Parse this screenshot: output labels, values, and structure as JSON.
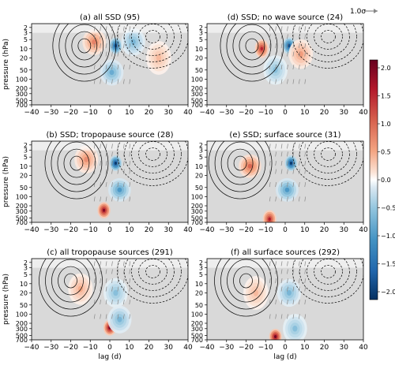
{
  "figure": {
    "ylabel": "pressure (hPa)",
    "xlabel": "lag (d)",
    "reference_vector_label": "1.0σ",
    "colorbar": {
      "ticks": [
        "2.0",
        "1.5",
        "1.0",
        "0.5",
        "0.0",
        "−0.5",
        "−1.0",
        "−1.5",
        "−2.0"
      ],
      "range": [
        -2.0,
        2.0
      ]
    }
  },
  "chart_data": [
    {
      "type": "heatmap",
      "title": "(a) all SSD (95)",
      "x_ticks": [
        -40,
        -30,
        -20,
        -10,
        0,
        10,
        20,
        30,
        40
      ],
      "y_ticks": [
        2,
        3,
        5,
        10,
        20,
        50,
        100,
        200,
        300,
        500,
        700
      ],
      "xlim": [
        -40,
        40
      ],
      "ylim_hPa": [
        700,
        1.5
      ],
      "y_scale": "log",
      "features": [
        {
          "kind": "positive",
          "lag": -8,
          "p": 6,
          "amp": 0.8
        },
        {
          "kind": "negative",
          "lag": 3,
          "p": 8,
          "amp": -1.8
        },
        {
          "kind": "negative",
          "lag": 1,
          "p": 60,
          "amp": -0.8
        },
        {
          "kind": "negative",
          "lag": 12,
          "p": 6,
          "amp": -0.7
        },
        {
          "kind": "positive",
          "lag": 25,
          "p": 20,
          "amp": 0.4
        }
      ]
    },
    {
      "type": "heatmap",
      "title": "(b) SSD; tropopause source (28)",
      "x_ticks": [
        -40,
        -30,
        -20,
        -10,
        0,
        10,
        20,
        30,
        40
      ],
      "y_ticks": [
        2,
        3,
        5,
        10,
        20,
        50,
        100,
        200,
        300,
        500,
        700
      ],
      "xlim": [
        -40,
        40
      ],
      "ylim_hPa": [
        700,
        1.5
      ],
      "y_scale": "log",
      "features": [
        {
          "kind": "positive",
          "lag": -12,
          "p": 6,
          "amp": 0.7
        },
        {
          "kind": "negative",
          "lag": 3,
          "p": 8,
          "amp": -2.0
        },
        {
          "kind": "negative",
          "lag": 5,
          "p": 60,
          "amp": -1.0
        },
        {
          "kind": "positive",
          "lag": -3,
          "p": 280,
          "amp": 1.9
        }
      ]
    },
    {
      "type": "heatmap",
      "title": "(c) all tropopause sources (291)",
      "x_ticks": [
        -40,
        -30,
        -20,
        -10,
        0,
        10,
        20,
        30,
        40
      ],
      "y_ticks": [
        2,
        3,
        5,
        10,
        20,
        50,
        100,
        200,
        300,
        500,
        700
      ],
      "xlim": [
        -40,
        40
      ],
      "ylim_hPa": [
        700,
        1.5
      ],
      "y_scale": "log",
      "features": [
        {
          "kind": "positive",
          "lag": -15,
          "p": 15,
          "amp": 0.5
        },
        {
          "kind": "negative",
          "lag": 3,
          "p": 20,
          "amp": -0.6
        },
        {
          "kind": "positive",
          "lag": 0,
          "p": 280,
          "amp": 2.0
        },
        {
          "kind": "negative",
          "lag": 5,
          "p": 150,
          "amp": -0.7
        }
      ]
    },
    {
      "type": "heatmap",
      "title": "(d) SSD; no wave source (24)",
      "x_ticks": [
        -40,
        -30,
        -20,
        -10,
        0,
        10,
        20,
        30,
        40
      ],
      "y_ticks": [
        2,
        3,
        5,
        10,
        20,
        50,
        100,
        200,
        300,
        500,
        700
      ],
      "xlim": [
        -40,
        40
      ],
      "ylim_hPa": [
        700,
        1.5
      ],
      "y_scale": "log",
      "features": [
        {
          "kind": "positive",
          "lag": -12,
          "p": 10,
          "amp": 1.5
        },
        {
          "kind": "negative",
          "lag": 2,
          "p": 8,
          "amp": -1.8
        },
        {
          "kind": "negative",
          "lag": -5,
          "p": 50,
          "amp": -0.6
        },
        {
          "kind": "positive",
          "lag": 8,
          "p": 15,
          "amp": 0.6
        }
      ]
    },
    {
      "type": "heatmap",
      "title": "(e) SSD; surface source (31)",
      "x_ticks": [
        -40,
        -30,
        -20,
        -10,
        0,
        10,
        20,
        30,
        40
      ],
      "y_ticks": [
        2,
        3,
        5,
        10,
        20,
        50,
        100,
        200,
        300,
        500,
        700
      ],
      "xlim": [
        -40,
        40
      ],
      "ylim_hPa": [
        700,
        1.5
      ],
      "y_scale": "log",
      "features": [
        {
          "kind": "positive",
          "lag": -18,
          "p": 10,
          "amp": 1.0
        },
        {
          "kind": "negative",
          "lag": 3,
          "p": 8,
          "amp": -2.0
        },
        {
          "kind": "negative",
          "lag": 1,
          "p": 60,
          "amp": -1.0
        },
        {
          "kind": "positive",
          "lag": -8,
          "p": 550,
          "amp": 1.6
        }
      ]
    },
    {
      "type": "heatmap",
      "title": "(f) all surface sources (292)",
      "x_ticks": [
        -40,
        -30,
        -20,
        -10,
        0,
        10,
        20,
        30,
        40
      ],
      "y_ticks": [
        2,
        3,
        5,
        10,
        20,
        50,
        100,
        200,
        300,
        500,
        700
      ],
      "xlim": [
        -40,
        40
      ],
      "ylim_hPa": [
        700,
        1.5
      ],
      "y_scale": "log",
      "features": [
        {
          "kind": "positive",
          "lag": -15,
          "p": 20,
          "amp": 0.4
        },
        {
          "kind": "negative",
          "lag": 2,
          "p": 20,
          "amp": -0.7
        },
        {
          "kind": "positive",
          "lag": -5,
          "p": 550,
          "amp": 2.0
        },
        {
          "kind": "negative",
          "lag": 5,
          "p": 300,
          "amp": -0.6
        }
      ]
    }
  ]
}
